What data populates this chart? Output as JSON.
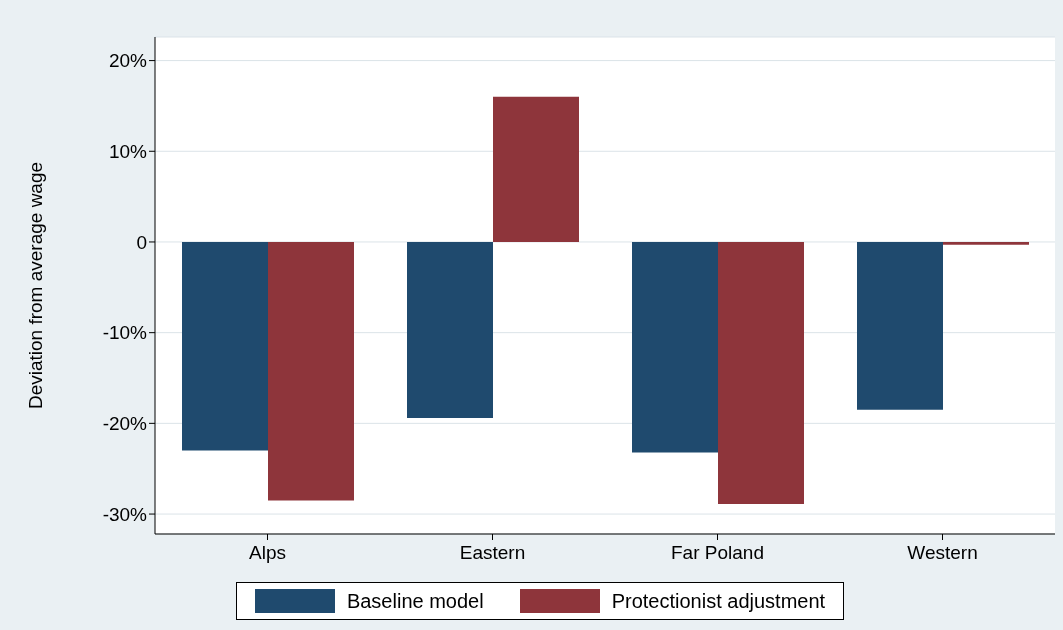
{
  "chart_data": {
    "type": "bar",
    "ylabel": "Deviation from average wage",
    "categories": [
      "Alps",
      "Eastern",
      "Far Poland",
      "Western"
    ],
    "series": [
      {
        "name": "Baseline model",
        "color": "#1f4a6e",
        "values": [
          -23,
          -19.4,
          -23.2,
          -18.5
        ]
      },
      {
        "name": "Protectionist adjustment",
        "color": "#8e353b",
        "values": [
          -28.5,
          16,
          -28.9,
          -0.3
        ]
      }
    ],
    "ylim": [
      -32.2,
      22.6
    ],
    "yticks": [
      {
        "value": -30,
        "label": "-30%"
      },
      {
        "value": -20,
        "label": "-20%"
      },
      {
        "value": -10,
        "label": "-10%"
      },
      0,
      {
        "value": 10,
        "label": "10%"
      },
      {
        "value": 20,
        "label": "20%"
      }
    ],
    "grid": "y",
    "legend": "bottom"
  }
}
